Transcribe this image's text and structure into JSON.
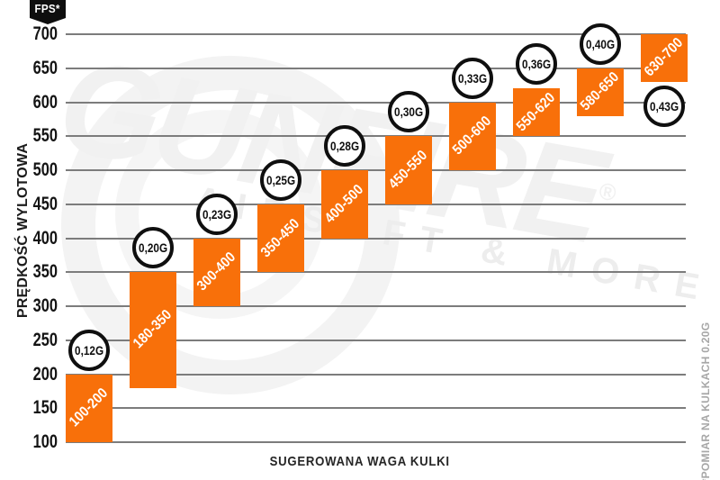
{
  "badge": {
    "label": "FPS*"
  },
  "axes": {
    "y_title": "PRĘDKOŚĆ WYLOTOWA",
    "x_title": "SUGEROWANA WAGA KULKI",
    "footnote": "*POMIAR NA KULKACH 0.20G"
  },
  "watermark": {
    "brand": "GUNFIRE",
    "registered": "®",
    "tagline": "AIRSOFT & MORE"
  },
  "chart_data": {
    "type": "bar",
    "subtype": "floating-range-columns",
    "title": "",
    "xlabel": "SUGEROWANA WAGA KULKI",
    "ylabel": "PRĘDKOŚĆ WYLOTOWA",
    "y_unit": "FPS",
    "ylim": [
      100,
      700
    ],
    "ytick_step": 50,
    "yticks": [
      700,
      650,
      600,
      550,
      500,
      450,
      400,
      350,
      300,
      250,
      200,
      150,
      100
    ],
    "grid": true,
    "legend": false,
    "categories": [
      "0,12G",
      "0,20G",
      "0,23G",
      "0,25G",
      "0,28G",
      "0,30G",
      "0,33G",
      "0,36G",
      "0,40G",
      "0,43G"
    ],
    "bars": [
      {
        "weight": "0,12G",
        "label": "100-200",
        "fps_min": 100,
        "fps_max": 200,
        "weight_pos": "above"
      },
      {
        "weight": "0,20G",
        "label": "180-350",
        "fps_min": 180,
        "fps_max": 350,
        "weight_pos": "above"
      },
      {
        "weight": "0,23G",
        "label": "300-400",
        "fps_min": 300,
        "fps_max": 400,
        "weight_pos": "above"
      },
      {
        "weight": "0,25G",
        "label": "350-450",
        "fps_min": 350,
        "fps_max": 450,
        "weight_pos": "above"
      },
      {
        "weight": "0,28G",
        "label": "400-500",
        "fps_min": 400,
        "fps_max": 500,
        "weight_pos": "above"
      },
      {
        "weight": "0,30G",
        "label": "450-550",
        "fps_min": 450,
        "fps_max": 550,
        "weight_pos": "above"
      },
      {
        "weight": "0,33G",
        "label": "500-600",
        "fps_min": 500,
        "fps_max": 600,
        "weight_pos": "above"
      },
      {
        "weight": "0,36G",
        "label": "550-620",
        "fps_min": 550,
        "fps_max": 620,
        "weight_pos": "above"
      },
      {
        "weight": "0,40G",
        "label": "580-650",
        "fps_min": 580,
        "fps_max": 650,
        "weight_pos": "above"
      },
      {
        "weight": "0,43G",
        "label": "630-700",
        "fps_min": 630,
        "fps_max": 700,
        "weight_pos": "below"
      }
    ],
    "colors": {
      "bar": "#F8700A",
      "bar_text": "#ffffff",
      "grid": "#7c7c7c",
      "tick_text": "#141414",
      "circle_bg": "#ffffff",
      "circle_border": "#0f0f0f",
      "badge_bg": "#0e0e0e",
      "badge_text": "#ffffff",
      "footnote_text": "#a7a7a7",
      "watermark": "#f1f1f1"
    }
  }
}
